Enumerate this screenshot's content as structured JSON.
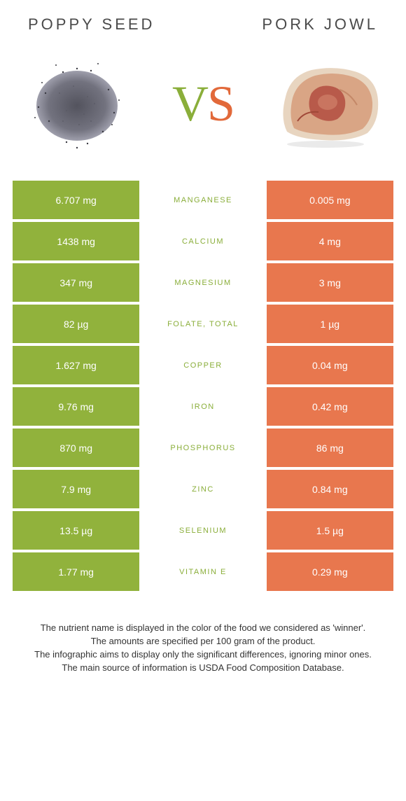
{
  "header": {
    "left_title": "Poppy seed",
    "right_title": "Pork jowl"
  },
  "vs": {
    "v": "V",
    "s": "S"
  },
  "colors": {
    "left_bg": "#91b23c",
    "right_bg": "#e8774e",
    "winner_left": "#8aae3a",
    "winner_right": "#e2693a"
  },
  "rows": [
    {
      "left": "6.707 mg",
      "label": "Manganese",
      "right": "0.005 mg",
      "winner": "left"
    },
    {
      "left": "1438 mg",
      "label": "Calcium",
      "right": "4 mg",
      "winner": "left"
    },
    {
      "left": "347 mg",
      "label": "Magnesium",
      "right": "3 mg",
      "winner": "left"
    },
    {
      "left": "82 µg",
      "label": "Folate, total",
      "right": "1 µg",
      "winner": "left"
    },
    {
      "left": "1.627 mg",
      "label": "Copper",
      "right": "0.04 mg",
      "winner": "left"
    },
    {
      "left": "9.76 mg",
      "label": "Iron",
      "right": "0.42 mg",
      "winner": "left"
    },
    {
      "left": "870 mg",
      "label": "Phosphorus",
      "right": "86 mg",
      "winner": "left"
    },
    {
      "left": "7.9 mg",
      "label": "Zinc",
      "right": "0.84 mg",
      "winner": "left"
    },
    {
      "left": "13.5 µg",
      "label": "Selenium",
      "right": "1.5 µg",
      "winner": "left"
    },
    {
      "left": "1.77 mg",
      "label": "Vitamin E",
      "right": "0.29 mg",
      "winner": "left"
    }
  ],
  "footer": {
    "line1": "The nutrient name is displayed in the color of the food we considered as 'winner'.",
    "line2": "The amounts are specified per 100 gram of the product.",
    "line3": "The infographic aims to display only the significant differences, ignoring minor ones.",
    "line4": "The main source of information is USDA Food Composition Database."
  }
}
